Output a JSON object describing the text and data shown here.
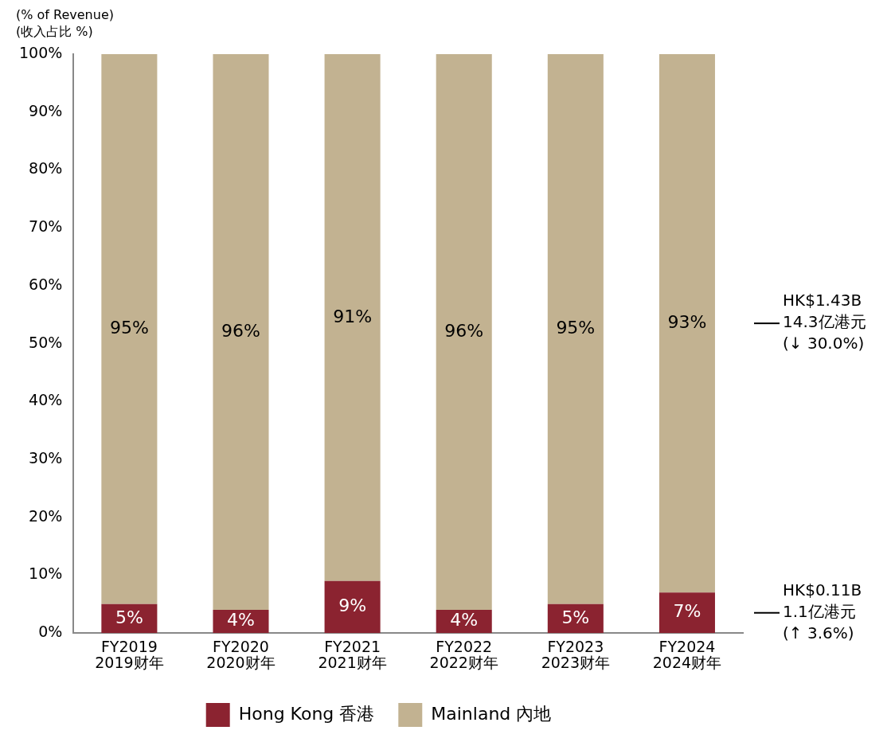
{
  "chart_data": {
    "type": "bar",
    "stacked": true,
    "ylabel": "(% of Revenue)\n(收入占比 %)",
    "categories": [
      "FY2019\n2019财年",
      "FY2020\n2020财年",
      "FY2021\n2021财年",
      "FY2022\n2022财年",
      "FY2023\n2023财年",
      "FY2024\n2024财年"
    ],
    "series": [
      {
        "name": "Hong Kong 香港",
        "color": "#8b2330",
        "values": [
          5,
          4,
          9,
          4,
          5,
          7
        ],
        "value_labels": [
          "5%",
          "4%",
          "9%",
          "4%",
          "5%",
          "7%"
        ]
      },
      {
        "name": "Mainland 內地",
        "color": "#c2b291",
        "values": [
          95,
          96,
          91,
          96,
          95,
          93
        ],
        "value_labels": [
          "95%",
          "96%",
          "91%",
          "96%",
          "95%",
          "93%"
        ]
      }
    ],
    "ylim": [
      0,
      100
    ],
    "yticks": [
      {
        "value": 0,
        "label": "0%"
      },
      {
        "value": 10,
        "label": "10%"
      },
      {
        "value": 20,
        "label": "20%"
      },
      {
        "value": 30,
        "label": "30%"
      },
      {
        "value": 40,
        "label": "40%"
      },
      {
        "value": 50,
        "label": "50%"
      },
      {
        "value": 60,
        "label": "60%"
      },
      {
        "value": 70,
        "label": "70%"
      },
      {
        "value": 80,
        "label": "80%"
      },
      {
        "value": 90,
        "label": "90%"
      },
      {
        "value": 100,
        "label": "100%"
      }
    ],
    "grid": false,
    "legend": "bottom",
    "annotations": [
      "HK$1.43B\n14.3亿港元\n(↓ 30.0%)",
      "HK$0.11B\n1.1亿港元\n(↑ 3.6%)"
    ]
  }
}
